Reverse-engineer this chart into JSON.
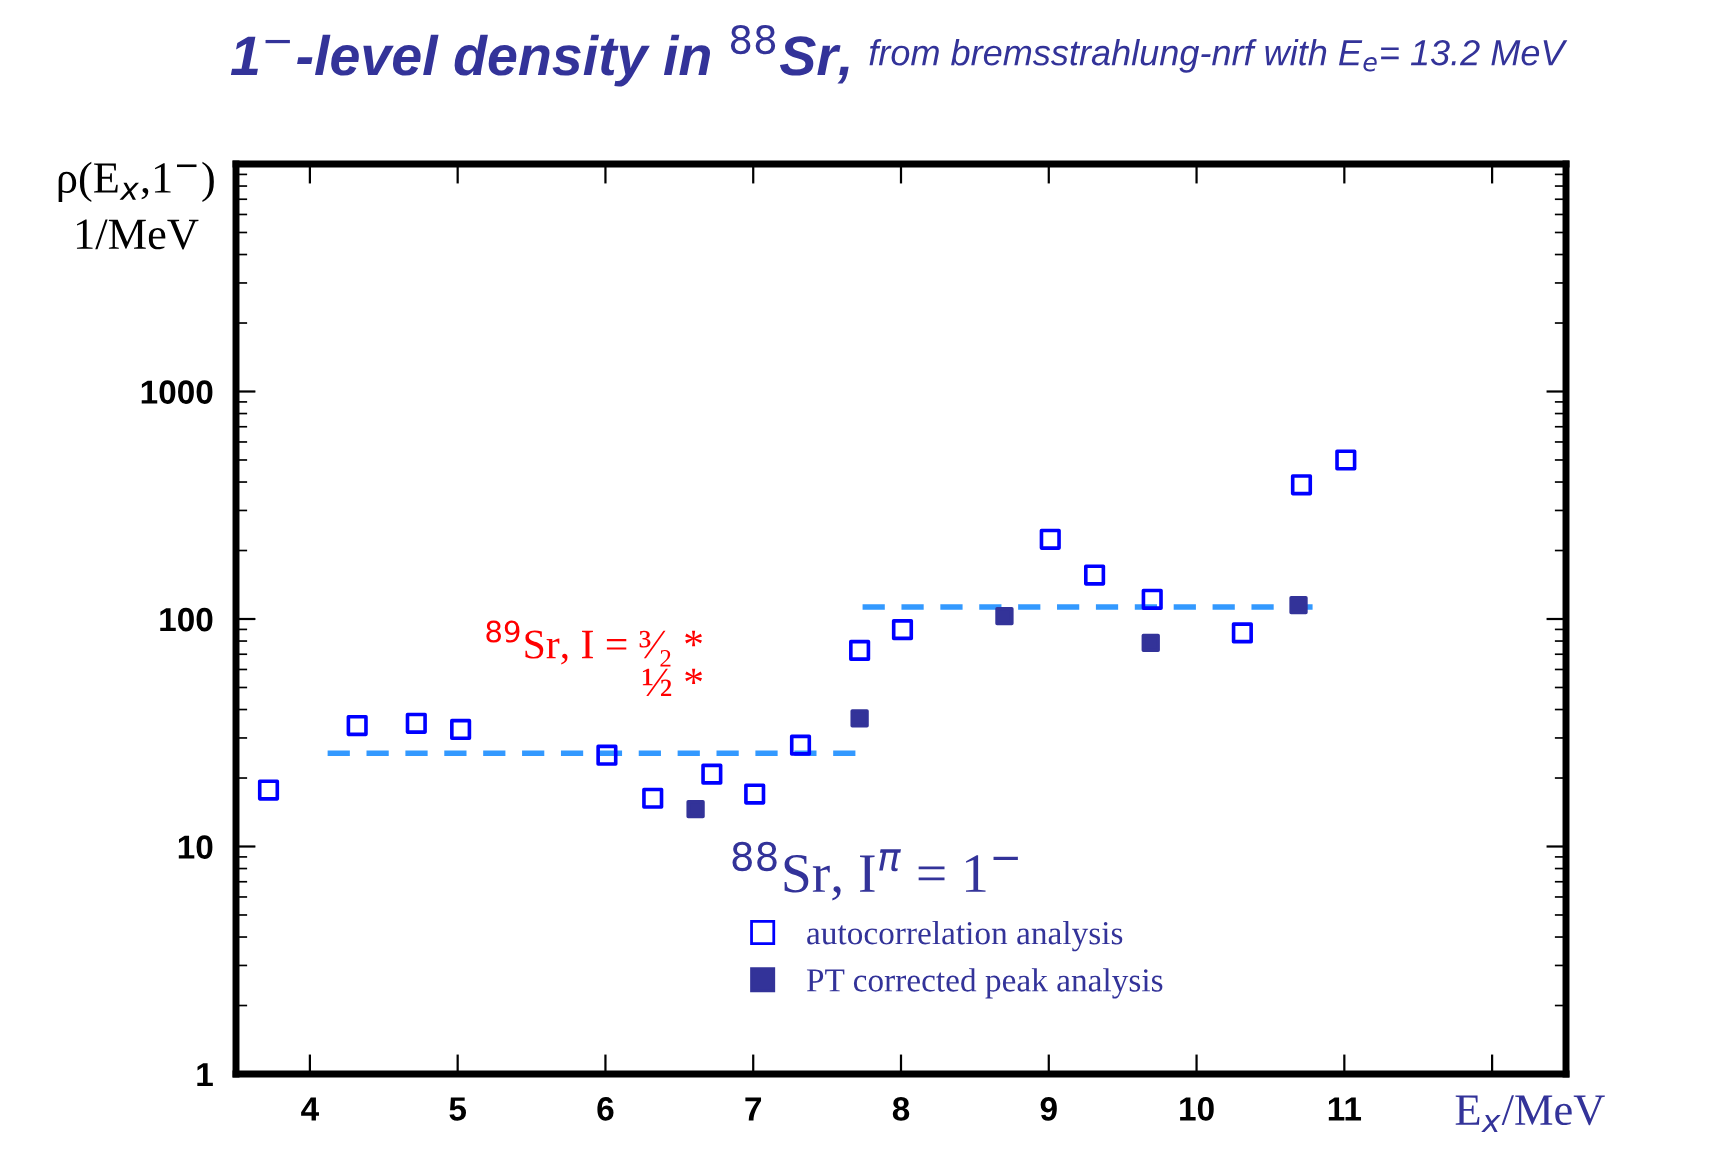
{
  "chart_data": {
    "type": "scatter",
    "title": "1$^{−}$-level density in $^{88}$Sr,",
    "subtitle": "from bremsstrahlung-nrf with E$_{e}$= 13.2 MeV",
    "xlabel": "E$_{x}$/MeV",
    "ylabel": "ρ(E$_{x}$,1$^{−}$)\n1/MeV",
    "legend_title": "$^{88}$Sr, I$^{π}$ = 1$^{−}$",
    "log": "y",
    "grid": false,
    "legend": "bottom right",
    "marker": "square",
    "xlim": [
      3.5,
      12.5
    ],
    "xticks": [
      4,
      5,
      6,
      7,
      8,
      9,
      10,
      11,
      {
        "value": 12,
        "label": null
      }
    ],
    "ylim": [
      1,
      10000
    ],
    "yticks": [
      1,
      10,
      100,
      1000,
      {
        "value": 10000,
        "label": null
      }
    ],
    "series": [
      {
        "name": "autocorrelation analysis",
        "color": "#0000ff",
        "x": [
          3.72,
          4.32,
          4.72,
          5.02,
          6.01,
          6.32,
          6.72,
          7.01,
          7.32,
          7.72,
          8.01,
          9.01,
          9.31,
          9.7,
          10.31,
          10.71,
          11.01
        ],
        "values": [
          17.7,
          34,
          34.8,
          32.7,
          25.2,
          16.3,
          20.8,
          17.0,
          27.9,
          72.8,
          89.8,
          224,
          156,
          122,
          86.9,
          389,
          500
        ]
      },
      {
        "name": "PT corrected peak analysis",
        "color": "#333399",
        "x": [
          6.61,
          7.72,
          8.7,
          9.69,
          10.69
        ],
        "values": [
          14.6,
          36.6,
          103,
          78.5,
          115
        ]
      },
      {
        "type": "line",
        "color": "#3399ff",
        "line_style": "dashed",
        "marker": "none",
        "x": [
          4.12,
          7.71
        ],
        "values": [
          25.7,
          25.7
        ]
      },
      {
        "type": "line",
        "color": "#3399ff",
        "line_style": "dashed",
        "marker": "none",
        "x": [
          7.74,
          10.82
        ],
        "values": [
          113,
          113
        ]
      }
    ],
    "annotations": [
      "$^{89}$Sr, I = ³⁄₂ *",
      "½ *"
    ]
  }
}
